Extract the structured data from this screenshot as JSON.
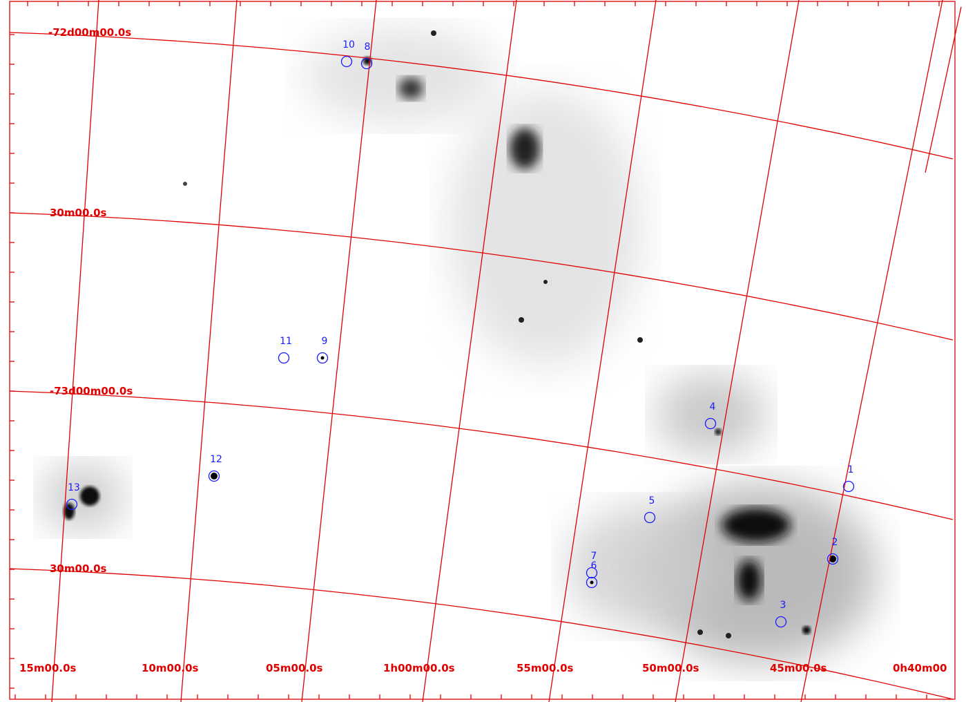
{
  "map": {
    "dec_labels": [
      "-72d00m00.0s",
      "30m00.0s",
      "-73d00m00.0s",
      "30m00.0s"
    ],
    "ra_labels": [
      "15m00.0s",
      "10m00.0s",
      "05m00.0s",
      "1h00m00.0s",
      "55m00.0s",
      "50m00.0s",
      "45m00.0s",
      "0h40m00"
    ],
    "sources": [
      "1",
      "2",
      "3",
      "4",
      "5",
      "6",
      "7",
      "8",
      "9",
      "10",
      "11",
      "12",
      "13"
    ]
  }
}
